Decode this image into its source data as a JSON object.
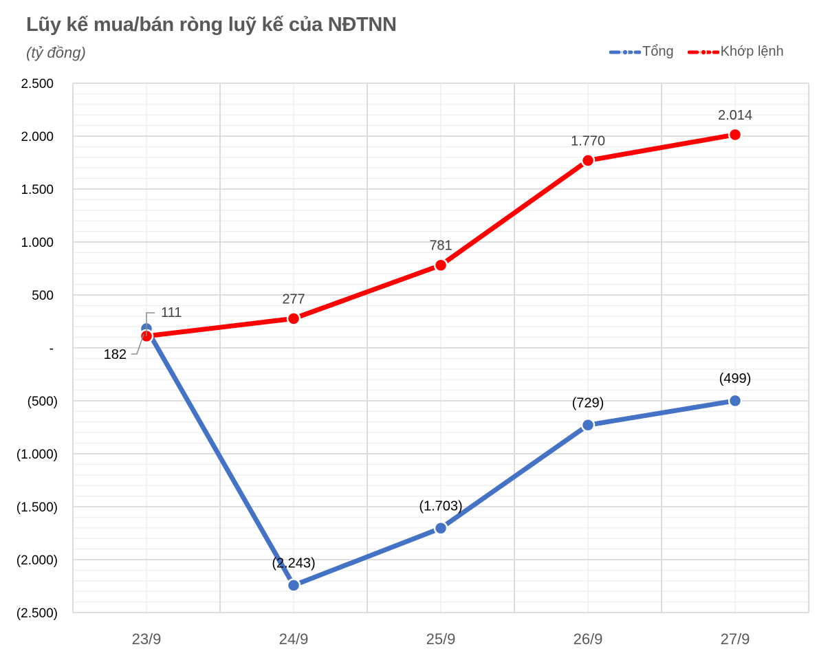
{
  "header": {
    "title": "Lũy kế mua/bán ròng luỹ kế của NĐTNN",
    "subtitle": "(tỷ đồng)"
  },
  "legend": {
    "items": [
      {
        "label": "Tổng",
        "color": "#4472C4"
      },
      {
        "label": "Khớp lệnh",
        "color": "#FF0000"
      }
    ]
  },
  "axes": {
    "y_ticks": [
      "2.500",
      "2.000",
      "1.500",
      "1.000",
      "500",
      "-",
      "(500)",
      "(1.000)",
      "(1.500)",
      "(2.000)",
      "(2.500)"
    ],
    "x_ticks": [
      "23/9",
      "24/9",
      "25/9",
      "26/9",
      "27/9"
    ]
  },
  "data_labels": {
    "tong": [
      "182",
      "(2.243)",
      "(1.703)",
      "(729)",
      "(499)"
    ],
    "khop_lenh": [
      "111",
      "277",
      "781",
      "1.770",
      "2.014"
    ]
  },
  "chart_data": {
    "type": "line",
    "title": "Lũy kế mua/bán ròng luỹ kế của NĐTNN",
    "subtitle": "(tỷ đồng)",
    "xlabel": "",
    "ylabel": "tỷ đồng",
    "categories": [
      "23/9",
      "24/9",
      "25/9",
      "26/9",
      "27/9"
    ],
    "series": [
      {
        "name": "Tổng",
        "color": "#4472C4",
        "values": [
          182,
          -2243,
          -1703,
          -729,
          -499
        ]
      },
      {
        "name": "Khớp lệnh",
        "color": "#FF0000",
        "values": [
          111,
          277,
          781,
          1770,
          2014
        ]
      }
    ],
    "ylim": [
      -2500,
      2500
    ],
    "y_major_step": 500,
    "y_minor_step": 100,
    "grid": true,
    "legend_position": "top-right"
  }
}
